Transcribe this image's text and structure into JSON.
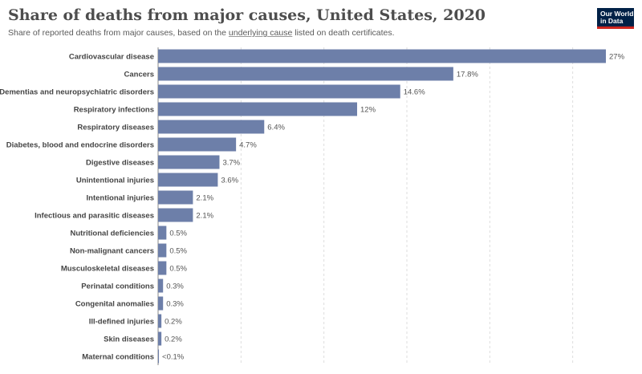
{
  "title": "Share of deaths from major causes, United States, 2020",
  "subtitle": {
    "before": "Share of reported deaths from major causes, based on the ",
    "link": "underlying cause",
    "after": " listed on death certificates."
  },
  "logo": {
    "line1": "Our World",
    "line2": "in Data"
  },
  "colors": {
    "bar": "#6d7fa9",
    "logo_bg": "#002147",
    "logo_accent": "#ce261e"
  },
  "chart_data": {
    "type": "bar",
    "orientation": "horizontal",
    "unit": "%",
    "xlim": [
      0,
      27
    ],
    "grid": true,
    "categories": [
      "Cardiovascular disease",
      "Cancers",
      "Dementias and neuropsychiatric disorders",
      "Respiratory infections",
      "Respiratory diseases",
      "Diabetes, blood and endocrine disorders",
      "Digestive diseases",
      "Unintentional injuries",
      "Intentional injuries",
      "Infectious and parasitic diseases",
      "Nutritional deficiencies",
      "Non-malignant cancers",
      "Musculoskeletal diseases",
      "Perinatal conditions",
      "Congenital anomalies",
      "Ill-defined injuries",
      "Skin diseases",
      "Maternal conditions"
    ],
    "values": [
      27,
      17.8,
      14.6,
      12,
      6.4,
      4.7,
      3.7,
      3.6,
      2.1,
      2.1,
      0.5,
      0.5,
      0.5,
      0.3,
      0.3,
      0.2,
      0.2,
      0.05
    ],
    "labels": [
      "27%",
      "17.8%",
      "14.6%",
      "12%",
      "6.4%",
      "4.7%",
      "3.7%",
      "3.6%",
      "2.1%",
      "2.1%",
      "0.5%",
      "0.5%",
      "0.5%",
      "0.3%",
      "0.3%",
      "0.2%",
      "0.2%",
      "<0.1%"
    ]
  }
}
